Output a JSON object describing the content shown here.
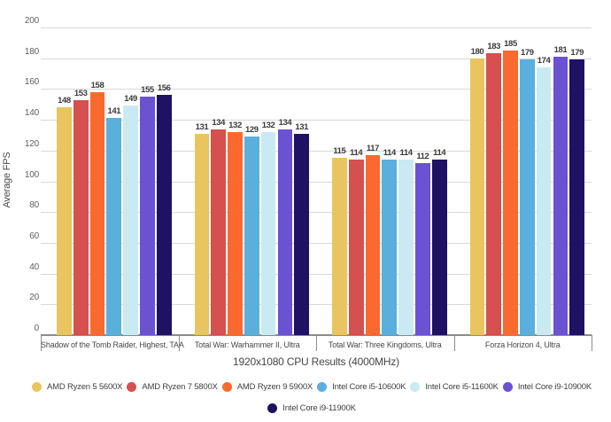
{
  "chart_data": {
    "type": "bar",
    "title": "",
    "xlabel": "1920x1080 CPU Results (4000MHz)",
    "ylabel": "Average FPS",
    "ylim": [
      0,
      200
    ],
    "ytick_step": 20,
    "grid": "horizontal",
    "legend_position": "bottom",
    "categories": [
      "Shadow of the Tomb Raider, Highest, TAA",
      "Total War: Warhammer II, Ultra",
      "Total War: Three Kingdoms, Ultra",
      "Forza Horizon 4, Ultra"
    ],
    "series": [
      {
        "name": "AMD Ryzen 5 5600X",
        "color": "#E9C55F",
        "values": [
          148,
          131,
          115,
          180
        ]
      },
      {
        "name": "AMD Ryzen 7 5800X",
        "color": "#D5504E",
        "values": [
          153,
          134,
          114,
          183
        ]
      },
      {
        "name": "AMD Ryzen 9 5900X",
        "color": "#FA692E",
        "values": [
          158,
          132,
          117,
          185
        ]
      },
      {
        "name": "Intel Core i5-10600K",
        "color": "#5AAFDD",
        "values": [
          141,
          129,
          114,
          179
        ]
      },
      {
        "name": "Intel Core i5-11600K",
        "color": "#C9EAF3",
        "values": [
          149,
          132,
          114,
          174
        ]
      },
      {
        "name": "Intel Core i9-10900K",
        "color": "#6A52D3",
        "values": [
          155,
          134,
          112,
          181
        ]
      },
      {
        "name": "Intel Core i9-11900K",
        "color": "#1F1164",
        "values": [
          156,
          131,
          114,
          179
        ]
      }
    ]
  },
  "style_colors": {
    "gridline": "#d9d9d9",
    "axis_line": "#8c8c8c",
    "value_label": "#3b3b3b",
    "axis_text": "#5f5f5f"
  }
}
